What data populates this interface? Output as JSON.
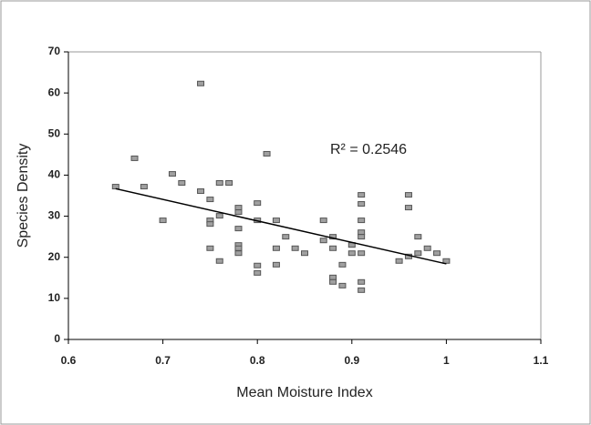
{
  "chart_data": {
    "type": "scatter",
    "x_label": "Mean Moisture Index",
    "y_label": "Species Density",
    "annotation": "R² = 0.2546",
    "x": [
      0.65,
      0.67,
      0.68,
      0.7,
      0.71,
      0.72,
      0.74,
      0.74,
      0.75,
      0.75,
      0.75,
      0.75,
      0.76,
      0.76,
      0.76,
      0.77,
      0.78,
      0.78,
      0.78,
      0.78,
      0.78,
      0.78,
      0.8,
      0.8,
      0.8,
      0.8,
      0.81,
      0.82,
      0.82,
      0.82,
      0.83,
      0.84,
      0.85,
      0.87,
      0.87,
      0.88,
      0.88,
      0.88,
      0.88,
      0.89,
      0.89,
      0.9,
      0.9,
      0.91,
      0.91,
      0.91,
      0.91,
      0.91,
      0.91,
      0.91,
      0.91,
      0.95,
      0.96,
      0.96,
      0.96,
      0.97,
      0.97,
      0.98,
      0.99,
      1.0
    ],
    "y": [
      37.2,
      44.1,
      37.2,
      29.0,
      40.3,
      38.1,
      62.3,
      36.1,
      34.1,
      29.0,
      28.1,
      22.2,
      38.1,
      30.1,
      19.1,
      38.1,
      32.1,
      31.0,
      27.0,
      23.0,
      22.2,
      21.0,
      33.2,
      29.0,
      18.0,
      16.2,
      45.2,
      29.0,
      22.2,
      18.2,
      25.0,
      22.2,
      21.0,
      29.0,
      24.1,
      25.0,
      22.2,
      15.1,
      14.0,
      18.2,
      13.1,
      23.0,
      21.0,
      35.2,
      33.0,
      29.0,
      26.1,
      25.0,
      21.0,
      14.0,
      12.0,
      19.1,
      35.2,
      32.1,
      20.2,
      25.0,
      21.0,
      22.2,
      21.0,
      19.1
    ],
    "marker_color": "#a0a0a0",
    "trendline": {
      "x": [
        0.65,
        1.0
      ],
      "y": [
        36.7,
        18.4
      ],
      "color": "#000000"
    },
    "xlim": [
      0.6,
      1.1
    ],
    "xticks": [
      0.6,
      0.7,
      0.8,
      0.9,
      1,
      1.1
    ],
    "ylim": [
      0,
      70
    ],
    "yticks": [
      0,
      10,
      20,
      30,
      40,
      50,
      60,
      70
    ]
  }
}
